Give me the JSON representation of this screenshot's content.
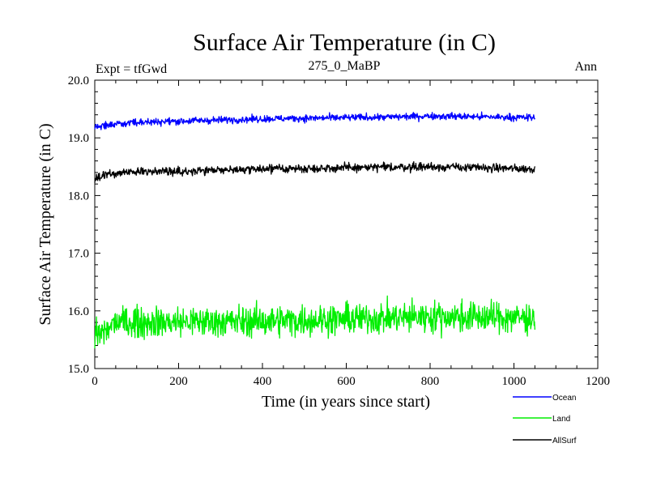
{
  "chart_data": {
    "type": "line",
    "title": "Surface Air Temperature (in C)",
    "subtitle": "275_0_MaBP",
    "left_label": "Expt = tfGwd",
    "right_label": "Ann",
    "xlabel": "Time (in years since start)",
    "ylabel": "Surface Air Temperature (in C)",
    "xlim": [
      0,
      1200
    ],
    "ylim": [
      15.0,
      20.0
    ],
    "x_ticks": [
      0,
      200,
      400,
      600,
      800,
      1000,
      1200
    ],
    "y_ticks": [
      15.0,
      16.0,
      17.0,
      18.0,
      19.0,
      20.0
    ],
    "y_tick_labels": [
      "15.0",
      "16.0",
      "17.0",
      "18.0",
      "19.0",
      "20.0"
    ],
    "x_range_data": [
      0,
      1050
    ],
    "series": [
      {
        "name": "Ocean",
        "color": "#0000ff",
        "start_value": 19.15,
        "mean": 19.33,
        "noise": 0.05,
        "trend_points": [
          [
            0,
            19.18
          ],
          [
            50,
            19.25
          ],
          [
            150,
            19.28
          ],
          [
            400,
            19.33
          ],
          [
            700,
            19.36
          ],
          [
            800,
            19.38
          ],
          [
            1050,
            19.35
          ]
        ]
      },
      {
        "name": "Land",
        "color": "#00ee00",
        "start_value": 15.35,
        "mean": 15.85,
        "noise": 0.22,
        "trend_points": [
          [
            0,
            15.6
          ],
          [
            50,
            15.8
          ],
          [
            400,
            15.82
          ],
          [
            800,
            15.9
          ],
          [
            1050,
            15.88
          ]
        ]
      },
      {
        "name": "AllSurf",
        "color": "#000000",
        "start_value": 18.22,
        "mean": 18.46,
        "noise": 0.06,
        "trend_points": [
          [
            0,
            18.3
          ],
          [
            50,
            18.4
          ],
          [
            400,
            18.46
          ],
          [
            800,
            18.5
          ],
          [
            1050,
            18.46
          ]
        ]
      }
    ]
  }
}
